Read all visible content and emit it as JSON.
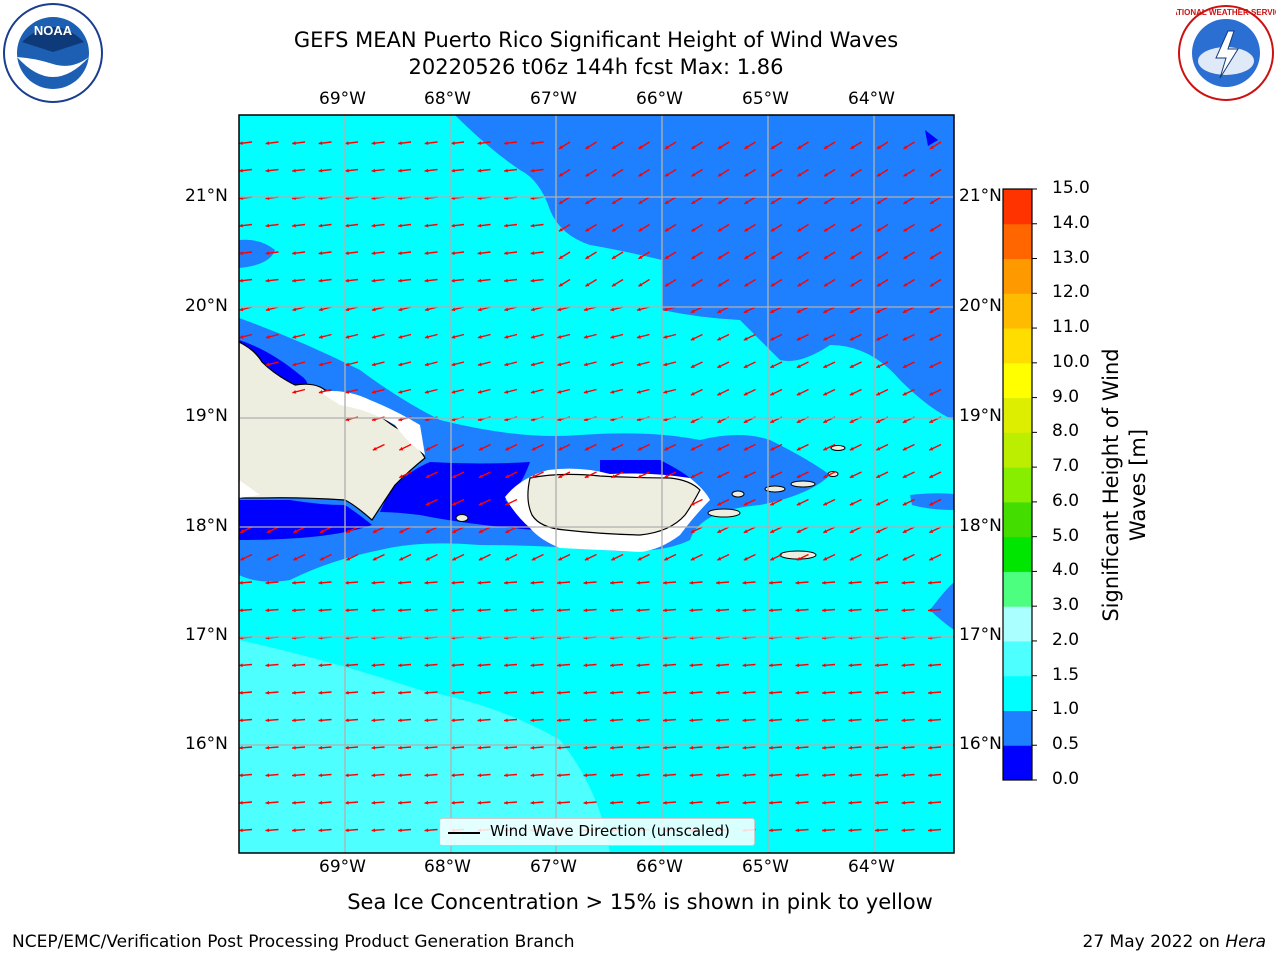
{
  "title": {
    "line1": "GEFS MEAN Puerto Rico Significant Height of Wind Waves",
    "line2": "20220526 t06z 144h fcst   Max: 1.86"
  },
  "map": {
    "lon_labels": [
      "69°W",
      "68°W",
      "67°W",
      "66°W",
      "65°W",
      "64°W"
    ],
    "lat_labels": [
      "21°N",
      "20°N",
      "19°N",
      "18°N",
      "17°N",
      "16°N"
    ],
    "legend_label": "Wind Wave Direction (unscaled)",
    "vector_color": "#ff0000",
    "land_color": "#eeeee0"
  },
  "colorbar": {
    "label": "Significant Height of Wind Waves [m]",
    "ticks": [
      "0.0",
      "0.5",
      "1.0",
      "1.5",
      "2.0",
      "3.0",
      "4.0",
      "5.0",
      "6.0",
      "7.0",
      "8.0",
      "9.0",
      "10.0",
      "11.0",
      "12.0",
      "13.0",
      "14.0",
      "15.0"
    ],
    "colors": [
      "#0000ff",
      "#1e7fff",
      "#00ffff",
      "#4dffff",
      "#aaffff",
      "#4dff7f",
      "#00e600",
      "#44dd00",
      "#88ee00",
      "#bbee00",
      "#ddee00",
      "#ffff00",
      "#ffdd00",
      "#ffbb00",
      "#ff9900",
      "#ff6600",
      "#ff3300",
      "#ff0000"
    ]
  },
  "logos": {
    "left_text": "NOAA",
    "right_text": "NATIONAL WEATHER SERVICE"
  },
  "footer": {
    "sea_ice_note": "Sea Ice Concentration > 15% is shown in pink to yellow",
    "left": "NCEP/EMC/Verification Post Processing Product Generation Branch",
    "right_prefix": "27 May 2022 on ",
    "right_host": "Hera"
  }
}
